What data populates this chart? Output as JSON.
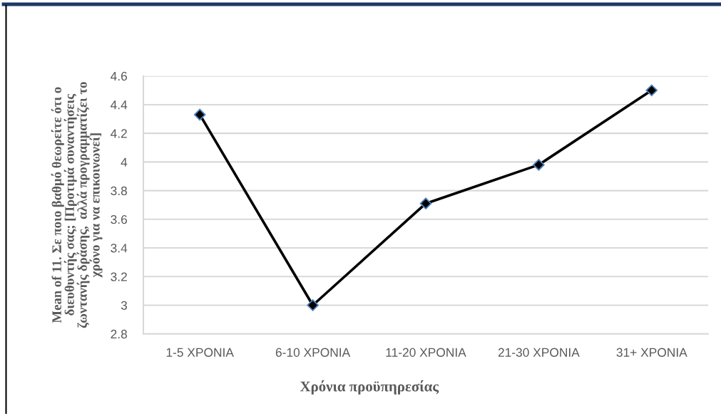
{
  "chart_data": {
    "type": "line",
    "xlabel": "Χρόνια προϋπηρεσίας",
    "ylabel": "Mean of 11. Σε ποιο βαθμό θεωρείτε ότι ο\nδιευθυντής σας; [Προτιμά συναντήσεις\nζωντανής δράσης,  αλλά προγραμματίζει το\nχρόνο για να επικοινωνεί]",
    "categories": [
      "1-5 XPONIA",
      "6-10 XPONIA",
      "11-20 XPONIA",
      "21-30 XPONIA",
      "31+ XPONIA"
    ],
    "series": [
      {
        "color": "#000000",
        "values": [
          4.33,
          3,
          3.71,
          3.98,
          4.5
        ]
      }
    ],
    "ylim": [
      2.8,
      4.6
    ],
    "yticks": [
      2.8,
      3,
      3.2,
      3.4,
      3.6,
      3.8,
      4,
      4.2,
      4.4,
      4.6
    ],
    "grid": "y",
    "marker": "diamond",
    "line_style": "solid"
  }
}
